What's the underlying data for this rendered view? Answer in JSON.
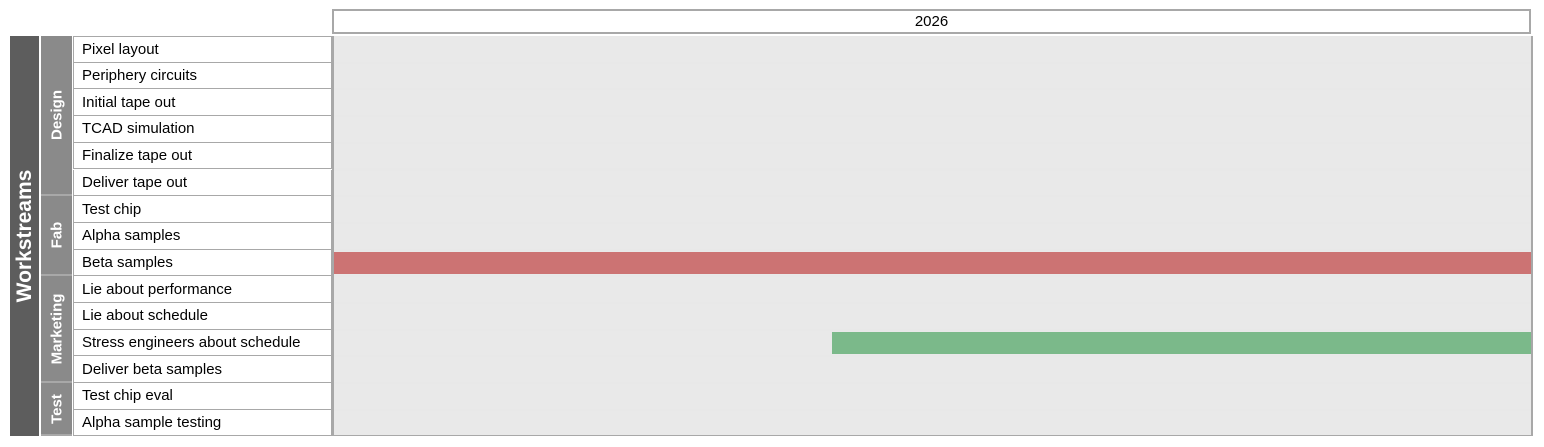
{
  "chart_data": {
    "type": "gantt",
    "period_label": "2026",
    "ylabel": "Workstreams",
    "x_range": [
      0,
      1
    ],
    "groups": [
      {
        "name": "Design",
        "start": 0,
        "count": 6
      },
      {
        "name": "Fab",
        "start": 6,
        "count": 3
      },
      {
        "name": "Marketing",
        "start": 9,
        "count": 4
      },
      {
        "name": "Test",
        "start": 13,
        "count": 2
      }
    ],
    "tasks": [
      {
        "label": "Pixel layout"
      },
      {
        "label": "Periphery circuits"
      },
      {
        "label": "Initial tape out"
      },
      {
        "label": "TCAD simulation"
      },
      {
        "label": "Finalize tape out"
      },
      {
        "label": "Deliver tape out"
      },
      {
        "label": "Test chip"
      },
      {
        "label": "Alpha samples"
      },
      {
        "label": "Beta samples",
        "start": 0.0,
        "end": 1.0,
        "color": "#cc7373"
      },
      {
        "label": "Lie about performance"
      },
      {
        "label": "Lie about schedule"
      },
      {
        "label": "Stress engineers about schedule",
        "start": 0.416,
        "end": 1.0,
        "color": "#7bb98a"
      },
      {
        "label": "Deliver beta samples"
      },
      {
        "label": "Test chip eval"
      },
      {
        "label": "Alpha sample testing"
      }
    ]
  }
}
